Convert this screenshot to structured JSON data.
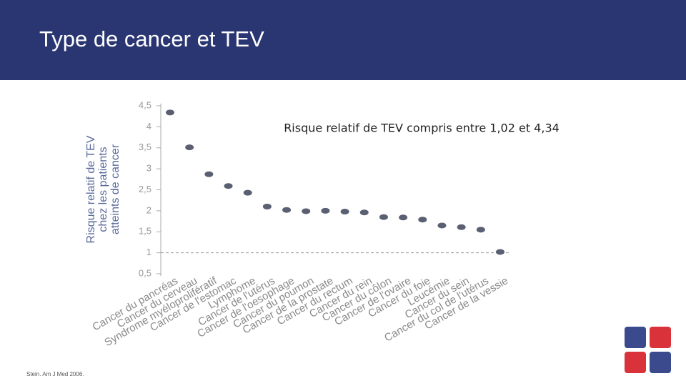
{
  "chart_data": {
    "type": "errorbar",
    "title": "Type de cancer et TEV",
    "annotation": "Risque relatif de TEV compris entre 1,02 et 4,34",
    "y_label": [
      "Risque relatif de TEV",
      "chez les patients",
      "atteints de cancer"
    ],
    "source": "Stein. Am J Med 2006.",
    "categories": [
      "Cancer du pancréas",
      "Cancer du cerveau",
      "Syndrome myéloprolifératif",
      "Cancer de l'estomac",
      "Lymphome",
      "Cancer de l'utérus",
      "Cancer de l'oesophage",
      "Cancer du poumon",
      "Cancer de la prostate",
      "Cancer du rectum",
      "Cancer du rein",
      "Cancer du côlon",
      "Cancer de l'ovaire",
      "Cancer du foie",
      "Leucémie",
      "Cancer du sein",
      "Cancer du col de l'utérus",
      "Cancer de la vessie"
    ],
    "values": [
      4.34,
      3.51,
      2.87,
      2.59,
      2.43,
      2.1,
      2.02,
      1.99,
      2.0,
      1.98,
      1.96,
      1.85,
      1.84,
      1.79,
      1.65,
      1.61,
      1.55,
      1.02
    ],
    "errors": [
      0.04,
      0.04,
      0.04,
      0.04,
      0.04,
      0.04,
      0.04,
      0.04,
      0.04,
      0.04,
      0.04,
      0.04,
      0.04,
      0.04,
      0.04,
      0.04,
      0.04,
      0.04
    ],
    "color": "#5a6072",
    "ylim": [
      0.5,
      4.5
    ],
    "yticks": [
      {
        "value": 0.5,
        "label": "0,5"
      },
      1,
      {
        "value": 1.5,
        "label": "1,5"
      },
      2,
      {
        "value": 2.5,
        "label": "2,5"
      },
      3,
      {
        "value": 3.5,
        "label": "3,5"
      },
      4,
      {
        "value": 4.5,
        "label": "4,5"
      }
    ],
    "reference_line": 1
  }
}
